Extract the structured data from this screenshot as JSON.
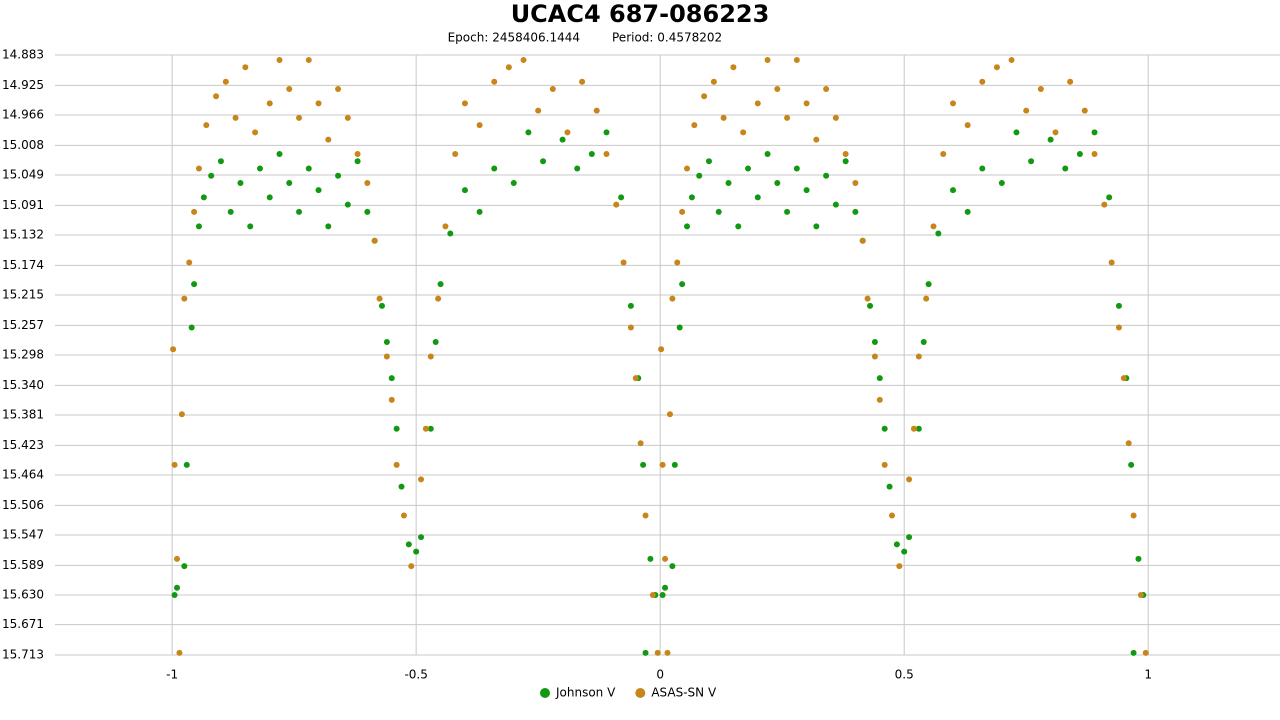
{
  "chart_data": {
    "type": "scatter",
    "title": "UCAC4 687-086223",
    "epoch": "Epoch: 2458406.1444",
    "period": "Period: 0.4578202",
    "xlim": [
      -1.24,
      1.27
    ],
    "xticks": [
      -1,
      -0.5,
      0,
      0.5,
      1
    ],
    "ylim": [
      15.713,
      14.883
    ],
    "yticks": [
      14.883,
      14.925,
      14.966,
      15.008,
      15.049,
      15.091,
      15.132,
      15.174,
      15.215,
      15.257,
      15.298,
      {
        "value": 15.34,
        "label": "15.340"
      },
      15.381,
      15.423,
      15.464,
      15.506,
      15.547,
      15.589,
      {
        "value": 15.63,
        "label": "15.630"
      },
      15.671,
      15.713
    ],
    "grid": true,
    "legend": "bottom",
    "series": [
      {
        "name": "Johnson V",
        "color": "#119911",
        "x": [
          -0.995,
          -0.99,
          -0.975,
          -0.97,
          -0.96,
          -0.955,
          -0.945,
          -0.935,
          -0.92,
          -0.9,
          -0.88,
          -0.86,
          -0.84,
          -0.82,
          -0.8,
          -0.78,
          -0.76,
          -0.74,
          -0.72,
          -0.7,
          -0.68,
          -0.66,
          -0.64,
          -0.62,
          -0.6,
          -0.585,
          -0.57,
          -0.56,
          -0.55,
          -0.54,
          -0.53,
          -0.515,
          -0.5,
          -0.49,
          -0.47,
          -0.46,
          -0.45,
          -0.43,
          -0.4,
          -0.37,
          -0.34,
          -0.3,
          -0.27,
          -0.24,
          -0.2,
          -0.17,
          -0.14,
          -0.11,
          -0.08,
          -0.06,
          -0.045,
          -0.035,
          -0.02,
          -0.01,
          -0.03,
          0.005,
          0.01,
          0.025,
          0.03,
          0.04,
          0.045,
          0.055,
          0.065,
          0.08,
          0.1,
          0.12,
          0.14,
          0.16,
          0.18,
          0.2,
          0.22,
          0.24,
          0.26,
          0.28,
          0.3,
          0.32,
          0.34,
          0.36,
          0.38,
          0.4,
          0.415,
          0.43,
          0.44,
          0.45,
          0.46,
          0.47,
          0.485,
          0.5,
          0.51,
          0.53,
          0.54,
          0.55,
          0.57,
          0.6,
          0.63,
          0.66,
          0.7,
          0.73,
          0.76,
          0.8,
          0.83,
          0.86,
          0.89,
          0.92,
          0.94,
          0.955,
          0.965,
          0.98,
          0.99,
          0.97
        ],
        "y": [
          15.63,
          15.62,
          15.59,
          15.45,
          15.26,
          15.2,
          15.12,
          15.08,
          15.05,
          15.03,
          15.1,
          15.06,
          15.12,
          15.04,
          15.08,
          15.02,
          15.06,
          15.1,
          15.04,
          15.07,
          15.12,
          15.05,
          15.09,
          15.03,
          15.1,
          15.14,
          15.23,
          15.28,
          15.33,
          15.4,
          15.48,
          15.56,
          15.57,
          15.55,
          15.4,
          15.28,
          15.2,
          15.13,
          15.07,
          15.1,
          15.04,
          15.06,
          14.99,
          15.03,
          15.0,
          15.04,
          15.02,
          14.99,
          15.08,
          15.23,
          15.33,
          15.45,
          15.58,
          15.63,
          15.71,
          15.63,
          15.62,
          15.59,
          15.45,
          15.26,
          15.2,
          15.12,
          15.08,
          15.05,
          15.03,
          15.1,
          15.06,
          15.12,
          15.04,
          15.08,
          15.02,
          15.06,
          15.1,
          15.04,
          15.07,
          15.12,
          15.05,
          15.09,
          15.03,
          15.1,
          15.14,
          15.23,
          15.28,
          15.33,
          15.4,
          15.48,
          15.56,
          15.57,
          15.55,
          15.4,
          15.28,
          15.2,
          15.13,
          15.07,
          15.1,
          15.04,
          15.06,
          14.99,
          15.03,
          15.0,
          15.04,
          15.02,
          14.99,
          15.08,
          15.23,
          15.33,
          15.45,
          15.58,
          15.63,
          15.71
        ]
      },
      {
        "name": "ASAS-SN V",
        "color": "#c8861a",
        "x": [
          -0.998,
          -0.995,
          -0.99,
          -0.985,
          -0.98,
          -0.975,
          -0.965,
          -0.955,
          -0.945,
          -0.93,
          -0.91,
          -0.89,
          -0.87,
          -0.85,
          -0.83,
          -0.8,
          -0.78,
          -0.76,
          -0.74,
          -0.72,
          -0.7,
          -0.68,
          -0.66,
          -0.64,
          -0.62,
          -0.6,
          -0.585,
          -0.575,
          -0.56,
          -0.55,
          -0.54,
          -0.525,
          -0.51,
          -0.49,
          -0.48,
          -0.47,
          -0.455,
          -0.44,
          -0.42,
          -0.4,
          -0.37,
          -0.34,
          -0.31,
          -0.28,
          -0.25,
          -0.22,
          -0.19,
          -0.16,
          -0.13,
          -0.11,
          -0.09,
          -0.075,
          -0.06,
          -0.05,
          -0.04,
          -0.03,
          -0.015,
          -0.005,
          0.002,
          0.005,
          0.01,
          0.015,
          0.02,
          0.025,
          0.035,
          0.045,
          0.055,
          0.07,
          0.09,
          0.11,
          0.13,
          0.15,
          0.17,
          0.2,
          0.22,
          0.24,
          0.26,
          0.28,
          0.3,
          0.32,
          0.34,
          0.36,
          0.38,
          0.4,
          0.415,
          0.425,
          0.44,
          0.45,
          0.46,
          0.475,
          0.49,
          0.51,
          0.52,
          0.53,
          0.545,
          0.56,
          0.58,
          0.6,
          0.63,
          0.66,
          0.69,
          0.72,
          0.75,
          0.78,
          0.81,
          0.84,
          0.87,
          0.89,
          0.91,
          0.925,
          0.94,
          0.95,
          0.96,
          0.97,
          0.985,
          0.995
        ],
        "y": [
          15.29,
          15.45,
          15.58,
          15.71,
          15.38,
          15.22,
          15.17,
          15.1,
          15.04,
          14.98,
          14.94,
          14.92,
          14.97,
          14.9,
          14.99,
          14.95,
          14.89,
          14.93,
          14.97,
          14.89,
          14.95,
          15.0,
          14.93,
          14.97,
          15.02,
          15.06,
          15.14,
          15.22,
          15.3,
          15.36,
          15.45,
          15.52,
          15.59,
          15.47,
          15.4,
          15.3,
          15.22,
          15.12,
          15.02,
          14.95,
          14.98,
          14.92,
          14.9,
          14.89,
          14.96,
          14.93,
          14.99,
          14.92,
          14.96,
          15.02,
          15.09,
          15.17,
          15.26,
          15.33,
          15.42,
          15.52,
          15.63,
          15.71,
          15.29,
          15.45,
          15.58,
          15.71,
          15.38,
          15.22,
          15.17,
          15.1,
          15.04,
          14.98,
          14.94,
          14.92,
          14.97,
          14.9,
          14.99,
          14.95,
          14.89,
          14.93,
          14.97,
          14.89,
          14.95,
          15.0,
          14.93,
          14.97,
          15.02,
          15.06,
          15.14,
          15.22,
          15.3,
          15.36,
          15.45,
          15.52,
          15.59,
          15.47,
          15.4,
          15.3,
          15.22,
          15.12,
          15.02,
          14.95,
          14.98,
          14.92,
          14.9,
          14.89,
          14.96,
          14.93,
          14.99,
          14.92,
          14.96,
          15.02,
          15.09,
          15.17,
          15.26,
          15.33,
          15.42,
          15.52,
          15.63,
          15.71
        ]
      }
    ]
  }
}
